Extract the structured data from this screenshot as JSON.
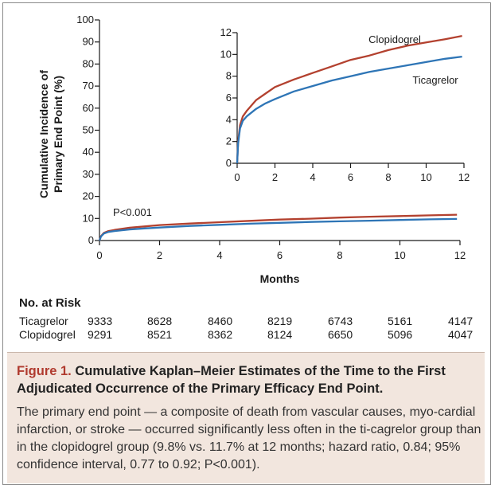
{
  "chart_data": [
    {
      "type": "line",
      "ylabel": "Cumulative Incidence of Primary End Point (%)",
      "xlabel": "Months",
      "ylim": [
        0,
        100
      ],
      "xlim": [
        0,
        12
      ],
      "yticks": [
        0,
        10,
        20,
        30,
        40,
        50,
        60,
        70,
        80,
        90,
        100
      ],
      "xticks": [
        0,
        2,
        4,
        6,
        8,
        10,
        12
      ],
      "annotation": "P<0.001",
      "grid": false,
      "series": [
        {
          "name": "Ticagrelor",
          "color": "#2e75b6",
          "x": [
            0,
            0.05,
            0.15,
            0.3,
            0.5,
            1,
            1.5,
            2,
            3,
            4,
            5,
            6,
            7,
            8,
            9,
            10,
            11,
            11.9
          ],
          "y": [
            0,
            1.8,
            3.2,
            3.9,
            4.3,
            5.0,
            5.5,
            5.9,
            6.6,
            7.1,
            7.6,
            8.0,
            8.4,
            8.7,
            9.0,
            9.3,
            9.6,
            9.8
          ]
        },
        {
          "name": "Clopidogrel",
          "color": "#b3412f",
          "x": [
            0,
            0.05,
            0.15,
            0.3,
            0.5,
            1,
            1.5,
            2,
            3,
            4,
            5,
            6,
            7,
            8,
            9,
            10,
            11,
            11.9
          ],
          "y": [
            0,
            2.0,
            3.5,
            4.3,
            4.8,
            5.8,
            6.4,
            7.0,
            7.7,
            8.3,
            8.9,
            9.5,
            9.9,
            10.4,
            10.8,
            11.1,
            11.4,
            11.7
          ]
        }
      ]
    },
    {
      "type": "line",
      "ylim": [
        0,
        12
      ],
      "xlim": [
        0,
        12
      ],
      "yticks": [
        0,
        2,
        4,
        6,
        8,
        10,
        12
      ],
      "xticks": [
        0,
        2,
        4,
        6,
        8,
        10,
        12
      ],
      "grid": false,
      "series": [
        {
          "name": "Ticagrelor",
          "color": "#2e75b6",
          "x": [
            0,
            0.05,
            0.15,
            0.3,
            0.5,
            1,
            1.5,
            2,
            3,
            4,
            5,
            6,
            7,
            8,
            9,
            10,
            11,
            11.9
          ],
          "y": [
            0,
            1.8,
            3.2,
            3.9,
            4.3,
            5.0,
            5.5,
            5.9,
            6.6,
            7.1,
            7.6,
            8.0,
            8.4,
            8.7,
            9.0,
            9.3,
            9.6,
            9.8
          ]
        },
        {
          "name": "Clopidogrel",
          "color": "#b3412f",
          "x": [
            0,
            0.05,
            0.15,
            0.3,
            0.5,
            1,
            1.5,
            2,
            3,
            4,
            5,
            6,
            7,
            8,
            9,
            10,
            11,
            11.9
          ],
          "y": [
            0,
            2.0,
            3.5,
            4.3,
            4.8,
            5.8,
            6.4,
            7.0,
            7.7,
            8.3,
            8.9,
            9.5,
            9.9,
            10.4,
            10.8,
            11.1,
            11.4,
            11.7
          ]
        }
      ]
    }
  ],
  "risk_table": {
    "title": "No. at Risk",
    "rows": [
      {
        "label": "Ticagrelor",
        "values": [
          "9333",
          "8628",
          "8460",
          "8219",
          "6743",
          "5161",
          "4147"
        ]
      },
      {
        "label": "Clopidogrel",
        "values": [
          "9291",
          "8521",
          "8362",
          "8124",
          "6650",
          "5096",
          "4047"
        ]
      }
    ]
  },
  "caption": {
    "figure_label": "Figure 1.",
    "title": "Cumulative Kaplan–Meier Estimates of the Time to the First Adjudicated Occurrence of the Primary Efficacy End Point.",
    "body": "The primary end point — a composite of death from vascular causes, myo-cardial infarction, or stroke — occurred significantly less often in the ti-cagrelor group than in the clopidogrel group (9.8% vs. 11.7% at 12 months; hazard ratio, 0.84; 95% confidence interval, 0.77 to 0.92; P<0.001).",
    "background": "#f2e6de",
    "label_color": "#b03a2e"
  }
}
